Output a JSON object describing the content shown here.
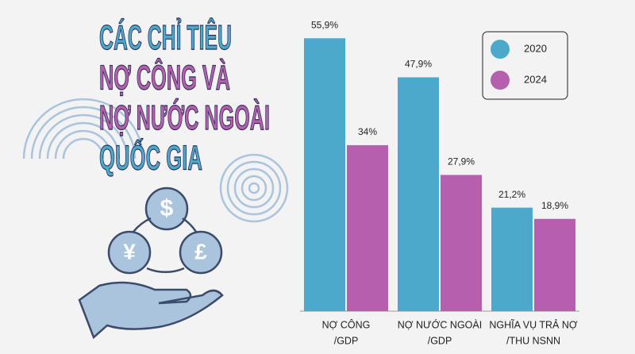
{
  "chart_data": {
    "type": "bar",
    "title_lines": [
      "CÁC CHỈ TIÊU",
      "NỢ CÔNG VÀ",
      "NỢ NƯỚC NGOÀI",
      "QUỐC GIA"
    ],
    "categories": [
      [
        "NỢ CÔNG",
        "/GDP"
      ],
      [
        "NỢ NƯỚC NGOÀI",
        "/GDP"
      ],
      [
        "NGHĨA VỤ TRẢ NỢ",
        "/THU NSNN"
      ]
    ],
    "series": [
      {
        "name": "2020",
        "color": "#4ba9cb",
        "values": [
          55.9,
          47.9,
          21.2
        ],
        "value_labels": [
          "55,9%",
          "47,9%",
          "21,2%"
        ]
      },
      {
        "name": "2024",
        "color": "#b55fae",
        "values": [
          34,
          27.9,
          18.9
        ],
        "value_labels": [
          "34%",
          "27,9%",
          "18,9%"
        ]
      }
    ],
    "legend": "top-right"
  }
}
